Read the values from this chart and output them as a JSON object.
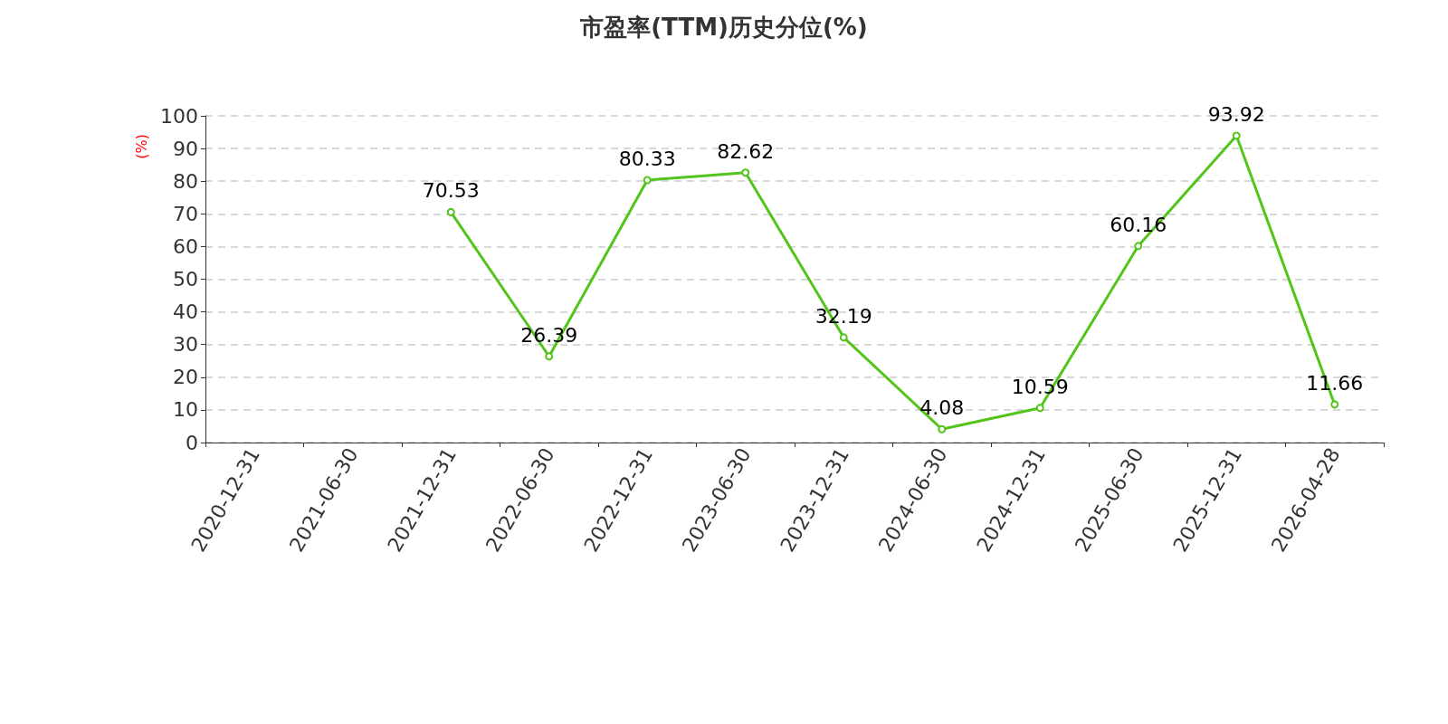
{
  "chart_data": {
    "type": "line",
    "title": "市盈率(TTM)历史分位(%)",
    "ylabel": "(%)",
    "categories": [
      "2020-12-31",
      "2021-06-30",
      "2021-12-31",
      "2022-06-30",
      "2022-12-31",
      "2023-06-30",
      "2023-12-31",
      "2024-06-30",
      "2024-12-31",
      "2025-06-30",
      "2025-12-31",
      "2026-04-28"
    ],
    "series": [
      {
        "color": "#52c41a",
        "values": [
          null,
          null,
          70.53,
          26.39,
          80.33,
          82.62,
          32.19,
          4.08,
          10.59,
          60.16,
          93.92,
          11.66
        ]
      }
    ],
    "ylim": [
      0,
      100
    ],
    "yticks": [
      0,
      10,
      20,
      30,
      40,
      50,
      60,
      70,
      80,
      90,
      100
    ],
    "grid": "y",
    "marker": "circle",
    "line_style": "solid",
    "data_labels": true
  }
}
